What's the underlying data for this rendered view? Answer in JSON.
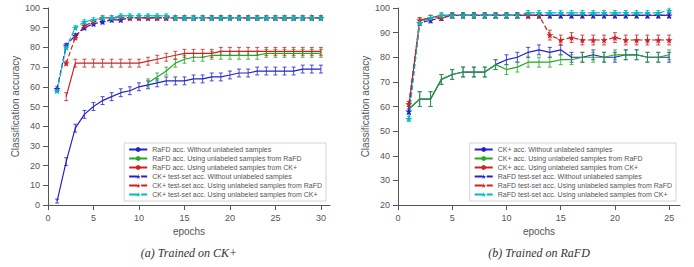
{
  "chart_data": [
    {
      "type": "line",
      "title": "(a) Trained on CK+",
      "xlabel": "epochs",
      "ylabel": "Classification accuracy",
      "xlim": [
        0,
        31
      ],
      "ylim": [
        0,
        100
      ],
      "xticks": [
        0,
        5,
        10,
        15,
        20,
        25,
        30
      ],
      "yticks": [
        0,
        10,
        20,
        30,
        40,
        50,
        60,
        70,
        80,
        90,
        100
      ],
      "grid": false,
      "legend": "lower right",
      "series": [
        {
          "name": "RaFD acc. Without unlabeled samples",
          "color": "#2222cc",
          "line_style": "solid",
          "x": [
            1,
            2,
            3,
            4,
            5,
            6,
            7,
            8,
            9,
            10,
            11,
            12,
            13,
            14,
            15,
            16,
            17,
            18,
            19,
            20,
            21,
            22,
            23,
            24,
            25,
            26,
            27,
            28,
            29,
            30
          ],
          "values": [
            2,
            22,
            39,
            46,
            50,
            53,
            55,
            57,
            58,
            60,
            61,
            62,
            63,
            63,
            63,
            64,
            64,
            65,
            65,
            66,
            67,
            67,
            68,
            68,
            68,
            68,
            68,
            69,
            69,
            69
          ],
          "yerr": [
            1,
            2,
            2,
            2,
            2,
            2,
            2,
            2,
            2,
            2,
            2,
            2,
            2,
            2,
            2,
            2,
            2,
            2,
            2,
            2,
            2,
            2,
            2,
            2,
            2,
            2,
            2,
            2,
            2,
            2
          ]
        },
        {
          "name": "RaFD acc. Using unlabeled samples from RaFD",
          "color": "#22aa22",
          "line_style": "solid",
          "x": [
            11,
            12,
            13,
            14,
            15,
            16,
            17,
            18,
            19,
            20,
            21,
            22,
            23,
            24,
            25,
            26,
            27,
            28,
            29,
            30
          ],
          "values": [
            62,
            65,
            68,
            72,
            74,
            75,
            75,
            76,
            76,
            76,
            76,
            76,
            76,
            77,
            77,
            77,
            77,
            77,
            77,
            77
          ],
          "yerr": [
            2,
            2,
            2,
            2,
            2,
            2,
            2,
            2,
            2,
            2,
            2,
            2,
            2,
            2,
            2,
            2,
            2,
            2,
            2,
            2
          ]
        },
        {
          "name": "RaFD acc. Using unlabeled samples from CK+",
          "color": "#cc2222",
          "line_style": "solid",
          "x": [
            2,
            3,
            4,
            5,
            6,
            7,
            8,
            9,
            10,
            11,
            12,
            13,
            14,
            15,
            16,
            17,
            18,
            19,
            20,
            21,
            22,
            23,
            24,
            25,
            26,
            27,
            28,
            29,
            30
          ],
          "values": [
            55,
            72,
            72,
            72,
            72,
            72,
            72,
            72,
            72,
            73,
            74,
            75,
            76,
            77,
            77,
            77,
            77,
            78,
            78,
            78,
            78,
            78,
            78,
            78,
            78,
            78,
            78,
            78,
            78
          ],
          "yerr": [
            2,
            2,
            2,
            2,
            2,
            2,
            2,
            2,
            2,
            2,
            2,
            2,
            2,
            2,
            2,
            2,
            2,
            2,
            2,
            2,
            2,
            2,
            2,
            2,
            2,
            2,
            2,
            2,
            2
          ]
        },
        {
          "name": "CK+ test-set acc. Without unlabeled samples",
          "color": "#2222cc",
          "line_style": "dashed",
          "marker": "star",
          "x": [
            1,
            2,
            3,
            4,
            5,
            6,
            7,
            8,
            9,
            10,
            11,
            12,
            13,
            14,
            15,
            16,
            17,
            18,
            19,
            20,
            21,
            22,
            23,
            24,
            25,
            26,
            27,
            28,
            29,
            30
          ],
          "values": [
            59,
            81,
            86,
            90,
            92,
            93,
            94,
            94,
            95,
            95,
            95,
            95,
            95,
            95,
            95,
            95,
            95,
            95,
            95,
            95,
            95,
            95,
            95,
            95,
            95,
            95,
            95,
            95,
            95,
            95
          ],
          "yerr": [
            1,
            1,
            1,
            1,
            1,
            1,
            1,
            1,
            1,
            1,
            1,
            1,
            1,
            1,
            1,
            1,
            1,
            1,
            1,
            1,
            1,
            1,
            1,
            1,
            1,
            1,
            1,
            1,
            1,
            1
          ]
        },
        {
          "name": "CK+ test-set acc. Using unlabeled samples from RaFD",
          "color": "#cc2222",
          "line_style": "dashed",
          "marker": "star",
          "x": [
            2,
            3,
            4,
            5,
            6,
            7,
            8,
            9,
            10,
            11,
            12,
            13,
            14,
            15,
            16,
            17,
            18,
            19,
            20,
            21,
            22,
            23,
            24,
            25,
            26,
            27,
            28,
            29,
            30
          ],
          "values": [
            72,
            85,
            91,
            93,
            95,
            95,
            95,
            95,
            95,
            95,
            95,
            95,
            95,
            95,
            95,
            95,
            95,
            95,
            95,
            95,
            95,
            95,
            95,
            95,
            95,
            95,
            95,
            95,
            95
          ],
          "yerr": [
            1,
            1,
            1,
            1,
            1,
            1,
            1,
            1,
            1,
            1,
            1,
            1,
            1,
            1,
            1,
            1,
            1,
            1,
            1,
            1,
            1,
            1,
            1,
            1,
            1,
            1,
            1,
            1,
            1
          ]
        },
        {
          "name": "CK+ test-set acc. Using unlabeled samples from CK+",
          "color": "#00bbbb",
          "line_style": "dashed",
          "marker": "star",
          "x": [
            1,
            2,
            3,
            4,
            5,
            6,
            7,
            8,
            9,
            10,
            11,
            12,
            13,
            14,
            15,
            16,
            17,
            18,
            19,
            20,
            21,
            22,
            23,
            24,
            25,
            26,
            27,
            28,
            29,
            30
          ],
          "values": [
            58,
            80,
            90,
            93,
            94,
            95,
            95,
            96,
            96,
            96,
            96,
            96,
            96,
            95,
            95,
            95,
            95,
            95,
            95,
            95,
            95,
            95,
            95,
            95,
            95,
            95,
            95,
            95,
            95,
            95
          ],
          "yerr": [
            1,
            1,
            1,
            1,
            1,
            1,
            1,
            1,
            1,
            1,
            1,
            1,
            1,
            1,
            1,
            1,
            1,
            1,
            1,
            1,
            1,
            1,
            1,
            1,
            1,
            1,
            1,
            1,
            1,
            1
          ]
        }
      ]
    },
    {
      "type": "line",
      "title": "(b) Trained on RaFD",
      "xlabel": "epochs",
      "ylabel": "Classification accuracy",
      "xlim": [
        0,
        26
      ],
      "ylim": [
        20,
        100
      ],
      "xticks": [
        0,
        5,
        10,
        15,
        20,
        25
      ],
      "yticks": [
        20,
        30,
        40,
        50,
        60,
        70,
        80,
        90,
        100
      ],
      "grid": false,
      "legend": "lower right",
      "series": [
        {
          "name": "CK+ acc. Without unlabeled samples",
          "color": "#2222cc",
          "line_style": "solid",
          "x": [
            1,
            2,
            3,
            4,
            5,
            6,
            7,
            8,
            9,
            10,
            11,
            12,
            13,
            14,
            15,
            16,
            17,
            18,
            19,
            20,
            21,
            22,
            23,
            24,
            25
          ],
          "values": [
            59,
            63,
            63,
            71,
            73,
            74,
            74,
            74,
            77,
            79,
            80,
            82,
            83,
            82,
            83,
            80,
            80,
            81,
            80,
            80,
            81,
            81,
            80,
            80,
            80
          ],
          "yerr": [
            2,
            3,
            3,
            2,
            2,
            2,
            2,
            2,
            2,
            2,
            2,
            2,
            2,
            2,
            2,
            2,
            2,
            2,
            2,
            2,
            2,
            2,
            2,
            2,
            2
          ]
        },
        {
          "name": "CK+ acc. Using unlabeled samples from RaFD",
          "color": "#22aa22",
          "line_style": "solid",
          "x": [
            1,
            2,
            3,
            4,
            5,
            6,
            7,
            8,
            9,
            10,
            11,
            12,
            13,
            14,
            15,
            16,
            17,
            18,
            19,
            20,
            21,
            22,
            23,
            24,
            25
          ],
          "values": [
            59,
            63,
            63,
            71,
            73,
            74,
            74,
            74,
            77,
            75,
            76,
            78,
            78,
            78,
            79,
            79,
            80,
            80,
            80,
            81,
            81,
            81,
            80,
            80,
            81
          ],
          "yerr": [
            2,
            3,
            3,
            2,
            2,
            2,
            2,
            2,
            2,
            2,
            2,
            2,
            2,
            2,
            2,
            2,
            2,
            2,
            2,
            2,
            2,
            2,
            2,
            2,
            2
          ]
        },
        {
          "name": "CK+ acc. Using unlabeled samples from CK+",
          "color": "#cc2222",
          "line_style": "solid",
          "x": [
            1,
            2,
            3,
            4,
            5,
            6,
            7,
            8,
            9,
            10,
            11,
            12,
            13,
            14,
            15,
            16,
            17,
            18,
            19,
            20,
            21,
            22,
            23,
            24,
            25
          ],
          "values": [
            60,
            95,
            96,
            97,
            97,
            97,
            97,
            97,
            97,
            97,
            97,
            97,
            97,
            97,
            97,
            97,
            97,
            97,
            97,
            97,
            97,
            97,
            97,
            97,
            97
          ],
          "yerr": [
            2,
            1,
            1,
            1,
            1,
            1,
            1,
            1,
            1,
            1,
            1,
            1,
            1,
            1,
            1,
            1,
            1,
            1,
            1,
            1,
            1,
            1,
            1,
            1,
            1
          ]
        },
        {
          "name": "RaFD test-set acc. Without unlabeled samples",
          "color": "#2222cc",
          "line_style": "dashed",
          "marker": "star",
          "x": [
            1,
            2,
            3,
            4,
            5,
            6,
            7,
            8,
            9,
            10,
            11,
            12,
            13,
            14,
            15,
            16,
            17,
            18,
            19,
            20,
            21,
            22,
            23,
            24,
            25
          ],
          "values": [
            58,
            94,
            95,
            96,
            97,
            97,
            97,
            97,
            97,
            97,
            97,
            97,
            97,
            97,
            97,
            97,
            97,
            97,
            97,
            97,
            97,
            97,
            97,
            97,
            97
          ],
          "yerr": [
            1,
            1,
            1,
            1,
            1,
            1,
            1,
            1,
            1,
            1,
            1,
            1,
            1,
            1,
            1,
            1,
            1,
            1,
            1,
            1,
            1,
            1,
            1,
            1,
            1
          ]
        },
        {
          "name": "RaFD test-set acc. Using unlabeled samples from RaFD",
          "color": "#cc2222",
          "line_style": "dashed",
          "marker": "star",
          "x": [
            1,
            2,
            3,
            4,
            5,
            6,
            7,
            8,
            9,
            10,
            11,
            12,
            13,
            14,
            15,
            16,
            17,
            18,
            19,
            20,
            21,
            22,
            23,
            24,
            25
          ],
          "values": [
            61,
            95,
            96,
            96,
            97,
            97,
            97,
            97,
            97,
            97,
            97,
            97,
            97,
            89,
            87,
            88,
            87,
            87,
            87,
            88,
            87,
            87,
            87,
            87,
            87
          ],
          "yerr": [
            1,
            1,
            1,
            1,
            1,
            1,
            1,
            1,
            1,
            1,
            1,
            1,
            1,
            2,
            2,
            2,
            2,
            2,
            2,
            2,
            2,
            2,
            2,
            2,
            2
          ]
        },
        {
          "name": "RaFD test-set acc. Using unlabeled samples from CK+",
          "color": "#00bbbb",
          "line_style": "dashed",
          "marker": "star",
          "x": [
            1,
            2,
            3,
            4,
            5,
            6,
            7,
            8,
            9,
            10,
            11,
            12,
            13,
            14,
            15,
            16,
            17,
            18,
            19,
            20,
            21,
            22,
            23,
            24,
            25
          ],
          "values": [
            55,
            94,
            96,
            97,
            97,
            97,
            97,
            97,
            97,
            97,
            97,
            98,
            98,
            98,
            98,
            98,
            98,
            98,
            98,
            98,
            98,
            98,
            98,
            98,
            99
          ],
          "yerr": [
            1,
            1,
            1,
            1,
            1,
            1,
            1,
            1,
            1,
            1,
            1,
            1,
            1,
            1,
            1,
            1,
            1,
            1,
            1,
            1,
            1,
            1,
            1,
            1,
            1
          ]
        }
      ]
    }
  ]
}
